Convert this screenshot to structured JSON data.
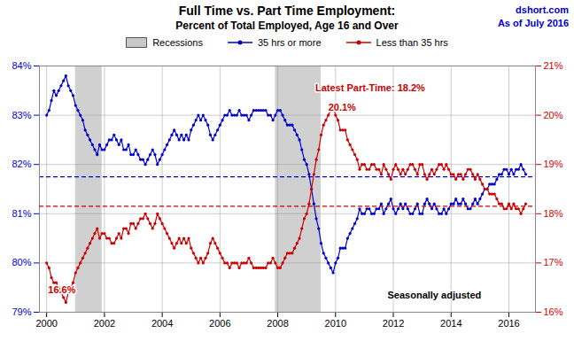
{
  "chart_data": {
    "type": "line",
    "title": "Full Time vs. Part Time Employment:",
    "subtitle": "Percent of Total Employed, Age 16 and Over",
    "watermark": [
      "dshort.com",
      "As of July 2016"
    ],
    "x": [
      2000,
      2000.0833333333333,
      2000.1666666666667,
      2000.25,
      2000.3333333333333,
      2000.4166666666667,
      2000.5,
      2000.5833333333333,
      2000.6666666666667,
      2000.75,
      2000.8333333333333,
      2000.9166666666667,
      2001,
      2001.0833333333333,
      2001.1666666666667,
      2001.25,
      2001.3333333333333,
      2001.4166666666667,
      2001.5,
      2001.5833333333333,
      2001.6666666666667,
      2001.75,
      2001.8333333333333,
      2001.9166666666667,
      2002,
      2002.0833333333333,
      2002.1666666666667,
      2002.25,
      2002.3333333333333,
      2002.4166666666667,
      2002.5,
      2002.5833333333333,
      2002.6666666666667,
      2002.75,
      2002.8333333333333,
      2002.9166666666667,
      2003,
      2003.0833333333333,
      2003.1666666666667,
      2003.25,
      2003.3333333333333,
      2003.4166666666667,
      2003.5,
      2003.5833333333333,
      2003.6666666666667,
      2003.75,
      2003.8333333333333,
      2003.9166666666667,
      2004,
      2004.0833333333333,
      2004.1666666666667,
      2004.25,
      2004.3333333333333,
      2004.4166666666667,
      2004.5,
      2004.5833333333333,
      2004.6666666666667,
      2004.75,
      2004.8333333333333,
      2004.9166666666667,
      2005,
      2005.0833333333333,
      2005.1666666666667,
      2005.25,
      2005.3333333333333,
      2005.4166666666667,
      2005.5,
      2005.5833333333333,
      2005.6666666666667,
      2005.75,
      2005.8333333333333,
      2005.9166666666667,
      2006,
      2006.0833333333333,
      2006.1666666666667,
      2006.25,
      2006.3333333333333,
      2006.4166666666667,
      2006.5,
      2006.5833333333333,
      2006.6666666666667,
      2006.75,
      2006.8333333333333,
      2006.9166666666667,
      2007,
      2007.0833333333333,
      2007.1666666666667,
      2007.25,
      2007.3333333333333,
      2007.4166666666667,
      2007.5,
      2007.5833333333333,
      2007.6666666666667,
      2007.75,
      2007.8333333333333,
      2007.9166666666667,
      2008,
      2008.0833333333333,
      2008.1666666666667,
      2008.25,
      2008.3333333333333,
      2008.4166666666667,
      2008.5,
      2008.5833333333333,
      2008.6666666666667,
      2008.75,
      2008.8333333333333,
      2008.9166666666667,
      2009,
      2009.0833333333333,
      2009.1666666666667,
      2009.25,
      2009.3333333333333,
      2009.4166666666667,
      2009.5,
      2009.5833333333333,
      2009.6666666666667,
      2009.75,
      2009.8333333333333,
      2009.9166666666667,
      2010,
      2010.0833333333333,
      2010.1666666666667,
      2010.25,
      2010.3333333333333,
      2010.4166666666667,
      2010.5,
      2010.5833333333333,
      2010.6666666666667,
      2010.75,
      2010.8333333333333,
      2010.9166666666667,
      2011,
      2011.0833333333333,
      2011.1666666666667,
      2011.25,
      2011.3333333333333,
      2011.4166666666667,
      2011.5,
      2011.5833333333333,
      2011.6666666666667,
      2011.75,
      2011.8333333333333,
      2011.9166666666667,
      2012,
      2012.0833333333333,
      2012.1666666666667,
      2012.25,
      2012.3333333333333,
      2012.4166666666667,
      2012.5,
      2012.5833333333333,
      2012.6666666666667,
      2012.75,
      2012.8333333333333,
      2012.9166666666667,
      2013,
      2013.0833333333333,
      2013.1666666666667,
      2013.25,
      2013.3333333333333,
      2013.4166666666667,
      2013.5,
      2013.5833333333333,
      2013.6666666666667,
      2013.75,
      2013.8333333333333,
      2013.9166666666667,
      2014,
      2014.0833333333333,
      2014.1666666666667,
      2014.25,
      2014.3333333333333,
      2014.4166666666667,
      2014.5,
      2014.5833333333333,
      2014.6666666666667,
      2014.75,
      2014.8333333333333,
      2014.9166666666667,
      2015,
      2015.0833333333333,
      2015.1666666666667,
      2015.25,
      2015.3333333333333,
      2015.4166666666667,
      2015.5,
      2015.5833333333333,
      2015.6666666666667,
      2015.75,
      2015.8333333333333,
      2015.9166666666667,
      2016,
      2016.0833333333333,
      2016.1666666666667,
      2016.25,
      2016.3333333333333,
      2016.4166666666667,
      2016.5,
      2016.5833333333333
    ],
    "series": [
      {
        "name": "35 hrs or more",
        "color": "#0000CC",
        "marker": "circle",
        "axis": "y",
        "values": [
          83.0,
          83.1,
          83.3,
          83.5,
          83.4,
          83.5,
          83.6,
          83.7,
          83.8,
          83.6,
          83.5,
          83.4,
          83.2,
          83.1,
          83.0,
          82.9,
          82.7,
          82.6,
          82.5,
          82.4,
          82.3,
          82.2,
          82.4,
          82.3,
          82.3,
          82.4,
          82.5,
          82.5,
          82.6,
          82.5,
          82.4,
          82.5,
          82.3,
          82.3,
          82.4,
          82.2,
          82.2,
          82.3,
          82.2,
          82.1,
          82.1,
          82.0,
          82.1,
          82.2,
          82.3,
          82.2,
          82.0,
          82.1,
          82.2,
          82.3,
          82.4,
          82.5,
          82.6,
          82.7,
          82.6,
          82.5,
          82.6,
          82.5,
          82.6,
          82.5,
          82.7,
          82.8,
          82.9,
          83.0,
          82.9,
          83.0,
          82.9,
          82.8,
          82.6,
          82.5,
          82.6,
          82.7,
          82.8,
          82.9,
          83.0,
          83.0,
          83.1,
          83.0,
          83.0,
          83.0,
          83.1,
          83.0,
          83.0,
          83.0,
          82.9,
          83.0,
          83.1,
          83.1,
          83.1,
          83.1,
          83.1,
          83.1,
          83.0,
          83.0,
          82.9,
          83.0,
          83.1,
          83.1,
          83.0,
          82.9,
          82.8,
          82.8,
          82.8,
          82.7,
          82.6,
          82.5,
          82.3,
          82.1,
          82.0,
          81.8,
          81.5,
          81.2,
          80.9,
          80.7,
          80.4,
          80.2,
          80.1,
          80.0,
          79.9,
          79.8,
          80.0,
          80.1,
          80.3,
          80.3,
          80.3,
          80.5,
          80.6,
          80.7,
          80.8,
          80.9,
          81.1,
          81.0,
          81.0,
          81.1,
          81.1,
          81.0,
          81.0,
          81.1,
          81.1,
          81.2,
          81.0,
          81.1,
          81.2,
          81.3,
          81.1,
          81.0,
          81.1,
          81.2,
          81.1,
          81.2,
          81.1,
          81.0,
          81.0,
          81.1,
          81.2,
          81.0,
          81.0,
          81.2,
          81.3,
          81.2,
          81.1,
          81.2,
          81.1,
          81.0,
          81.0,
          81.1,
          81.0,
          81.1,
          81.2,
          81.2,
          81.3,
          81.2,
          81.2,
          81.3,
          81.2,
          81.1,
          81.1,
          81.2,
          81.3,
          81.2,
          81.3,
          81.4,
          81.5,
          81.5,
          81.6,
          81.6,
          81.6,
          81.7,
          81.8,
          81.8,
          81.9,
          81.9,
          81.8,
          81.9,
          81.8,
          81.9,
          81.9,
          82.0,
          81.9,
          81.8
        ]
      },
      {
        "name": "Less than 35 hrs",
        "color": "#CC0000",
        "marker": "circle",
        "axis": "y2",
        "values": [
          17.0,
          16.9,
          16.7,
          16.6,
          16.6,
          16.5,
          16.4,
          16.3,
          16.2,
          16.4,
          16.5,
          16.6,
          16.8,
          16.9,
          17.0,
          17.1,
          17.2,
          17.3,
          17.4,
          17.5,
          17.6,
          17.7,
          17.5,
          17.6,
          17.6,
          17.5,
          17.5,
          17.4,
          17.4,
          17.5,
          17.6,
          17.5,
          17.7,
          17.7,
          17.6,
          17.8,
          17.8,
          17.7,
          17.8,
          17.9,
          17.9,
          18.0,
          17.9,
          17.8,
          17.7,
          17.8,
          18.0,
          17.9,
          17.8,
          17.7,
          17.6,
          17.5,
          17.4,
          17.3,
          17.4,
          17.5,
          17.4,
          17.5,
          17.4,
          17.5,
          17.3,
          17.2,
          17.1,
          17.0,
          17.1,
          17.0,
          17.1,
          17.2,
          17.4,
          17.5,
          17.4,
          17.3,
          17.2,
          17.1,
          17.0,
          17.0,
          16.9,
          17.0,
          17.0,
          17.0,
          16.9,
          17.0,
          17.0,
          17.0,
          17.1,
          17.0,
          16.9,
          16.9,
          16.9,
          16.9,
          16.9,
          16.9,
          17.0,
          17.0,
          17.1,
          17.0,
          16.9,
          16.9,
          17.0,
          17.1,
          17.2,
          17.2,
          17.2,
          17.3,
          17.4,
          17.5,
          17.7,
          17.9,
          18.0,
          18.2,
          18.5,
          18.8,
          19.1,
          19.3,
          19.6,
          19.8,
          19.9,
          20.0,
          20.1,
          20.2,
          20.0,
          19.9,
          19.7,
          19.7,
          19.7,
          19.5,
          19.4,
          19.3,
          19.2,
          19.1,
          18.9,
          19.0,
          19.0,
          18.9,
          18.9,
          19.0,
          19.0,
          18.9,
          18.9,
          18.8,
          19.0,
          18.9,
          18.8,
          18.7,
          18.9,
          19.0,
          18.9,
          18.8,
          18.9,
          18.8,
          18.9,
          19.0,
          19.0,
          18.9,
          18.8,
          19.0,
          19.0,
          18.8,
          18.7,
          18.8,
          18.9,
          18.8,
          18.9,
          19.0,
          19.0,
          18.9,
          19.0,
          18.9,
          18.8,
          18.8,
          18.7,
          18.8,
          18.8,
          18.7,
          18.8,
          18.9,
          18.9,
          18.8,
          18.7,
          18.8,
          18.7,
          18.6,
          18.5,
          18.5,
          18.4,
          18.4,
          18.4,
          18.3,
          18.2,
          18.2,
          18.1,
          18.1,
          18.2,
          18.1,
          18.2,
          18.1,
          18.1,
          18.0,
          18.1,
          18.2
        ]
      }
    ],
    "bands": {
      "name": "Recessions",
      "color": "#C8C8C8",
      "ranges": [
        [
          2001.0,
          2001.92
        ],
        [
          2007.92,
          2009.5
        ]
      ]
    },
    "hlines": [
      {
        "value": 81.75,
        "axis": "y",
        "color": "#0000CC",
        "line_style": "dashed"
      },
      {
        "value": 18.15,
        "axis": "y2",
        "color": "#CC0000",
        "line_style": "dashed"
      }
    ],
    "annotations": [
      {
        "text": "20.1%",
        "x": 2009.75,
        "y": 20.15,
        "axis": "y2",
        "color": "#CC0000"
      },
      {
        "text": "16.6%",
        "x": 2000.05,
        "y": 16.45,
        "axis": "y2",
        "color": "#CC0000"
      },
      {
        "text": "Latest Part-Time: 18.2%",
        "x": 2009.3,
        "y": 20.55,
        "axis": "y2",
        "color": "#CC0000"
      },
      {
        "text": "Seasonally adjusted",
        "x": 2011.8,
        "y": 79.35,
        "axis": "y",
        "color": "#000000"
      }
    ],
    "xlim": [
      1999.75,
      2016.92
    ],
    "xticks": [
      2000,
      2002,
      2004,
      2006,
      2008,
      2010,
      2012,
      2014,
      2016
    ],
    "ylim": [
      79,
      84
    ],
    "yticks": [
      {
        "value": 79,
        "label": "79%"
      },
      {
        "value": 80,
        "label": "80%"
      },
      {
        "value": 81,
        "label": "81%"
      },
      {
        "value": 82,
        "label": "82%"
      },
      {
        "value": 83,
        "label": "83%"
      },
      {
        "value": 84,
        "label": "84%"
      }
    ],
    "y2lim": [
      16,
      21
    ],
    "y2ticks": [
      {
        "value": 16,
        "label": "16%"
      },
      {
        "value": 17,
        "label": "17%"
      },
      {
        "value": 18,
        "label": "18%"
      },
      {
        "value": 19,
        "label": "19%"
      },
      {
        "value": 20,
        "label": "20%"
      },
      {
        "value": 21,
        "label": "21%"
      }
    ],
    "grid": true
  }
}
